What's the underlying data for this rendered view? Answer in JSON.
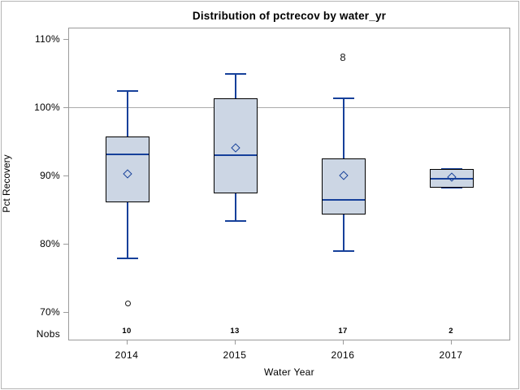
{
  "title": "Distribution of pctrecov by water_yr",
  "y_axis": {
    "label": "Pct Recovery",
    "tick_suffix": "%"
  },
  "x_axis": {
    "label": "Water Year"
  },
  "nobs_row": {
    "label": "Nobs"
  },
  "chart_data": {
    "type": "box",
    "title": "Distribution of pctrecov by water_yr",
    "xlabel": "Water Year",
    "ylabel": "Pct Recovery",
    "ylim": [
      65.8,
      111.7
    ],
    "yticks": [
      70,
      80,
      90,
      100,
      110
    ],
    "ytick_labels": [
      "70%",
      "80%",
      "90%",
      "100%",
      "110%"
    ],
    "reference_line_y": 100,
    "legend": "none",
    "grid": "reference-line-only",
    "categories": [
      "2014",
      "2015",
      "2016",
      "2017"
    ],
    "nobs": [
      "10",
      "13",
      "17",
      "2"
    ],
    "series": [
      {
        "category": "2014",
        "nobs": 10,
        "whisker_low": 78.0,
        "q1": 86.2,
        "median": 93.2,
        "q3": 95.8,
        "whisker_high": 102.5,
        "mean": 90.4,
        "outliers": [
          71.3
        ],
        "annotation": null
      },
      {
        "category": "2015",
        "nobs": 13,
        "whisker_low": 83.5,
        "q1": 87.5,
        "median": 93.1,
        "q3": 101.5,
        "whisker_high": 105.0,
        "mean": 94.2,
        "outliers": [],
        "annotation": null
      },
      {
        "category": "2016",
        "nobs": 17,
        "whisker_low": 79.0,
        "q1": 84.4,
        "median": 86.6,
        "q3": 92.6,
        "whisker_high": 101.5,
        "mean": 90.1,
        "outliers": [],
        "annotation": {
          "text": "8",
          "value": 107.4
        }
      },
      {
        "category": "2017",
        "nobs": 2,
        "whisker_low": 88.3,
        "q1": 88.3,
        "median": 89.7,
        "q3": 91.1,
        "whisker_high": 91.1,
        "mean": 89.9,
        "outliers": [],
        "annotation": null
      }
    ],
    "colors": {
      "box_fill": "#ccd6e4",
      "box_border": "#000000",
      "line": "#16409a",
      "frame": "#9b9b9b",
      "reference": "#ababab",
      "text": "#000000"
    }
  }
}
